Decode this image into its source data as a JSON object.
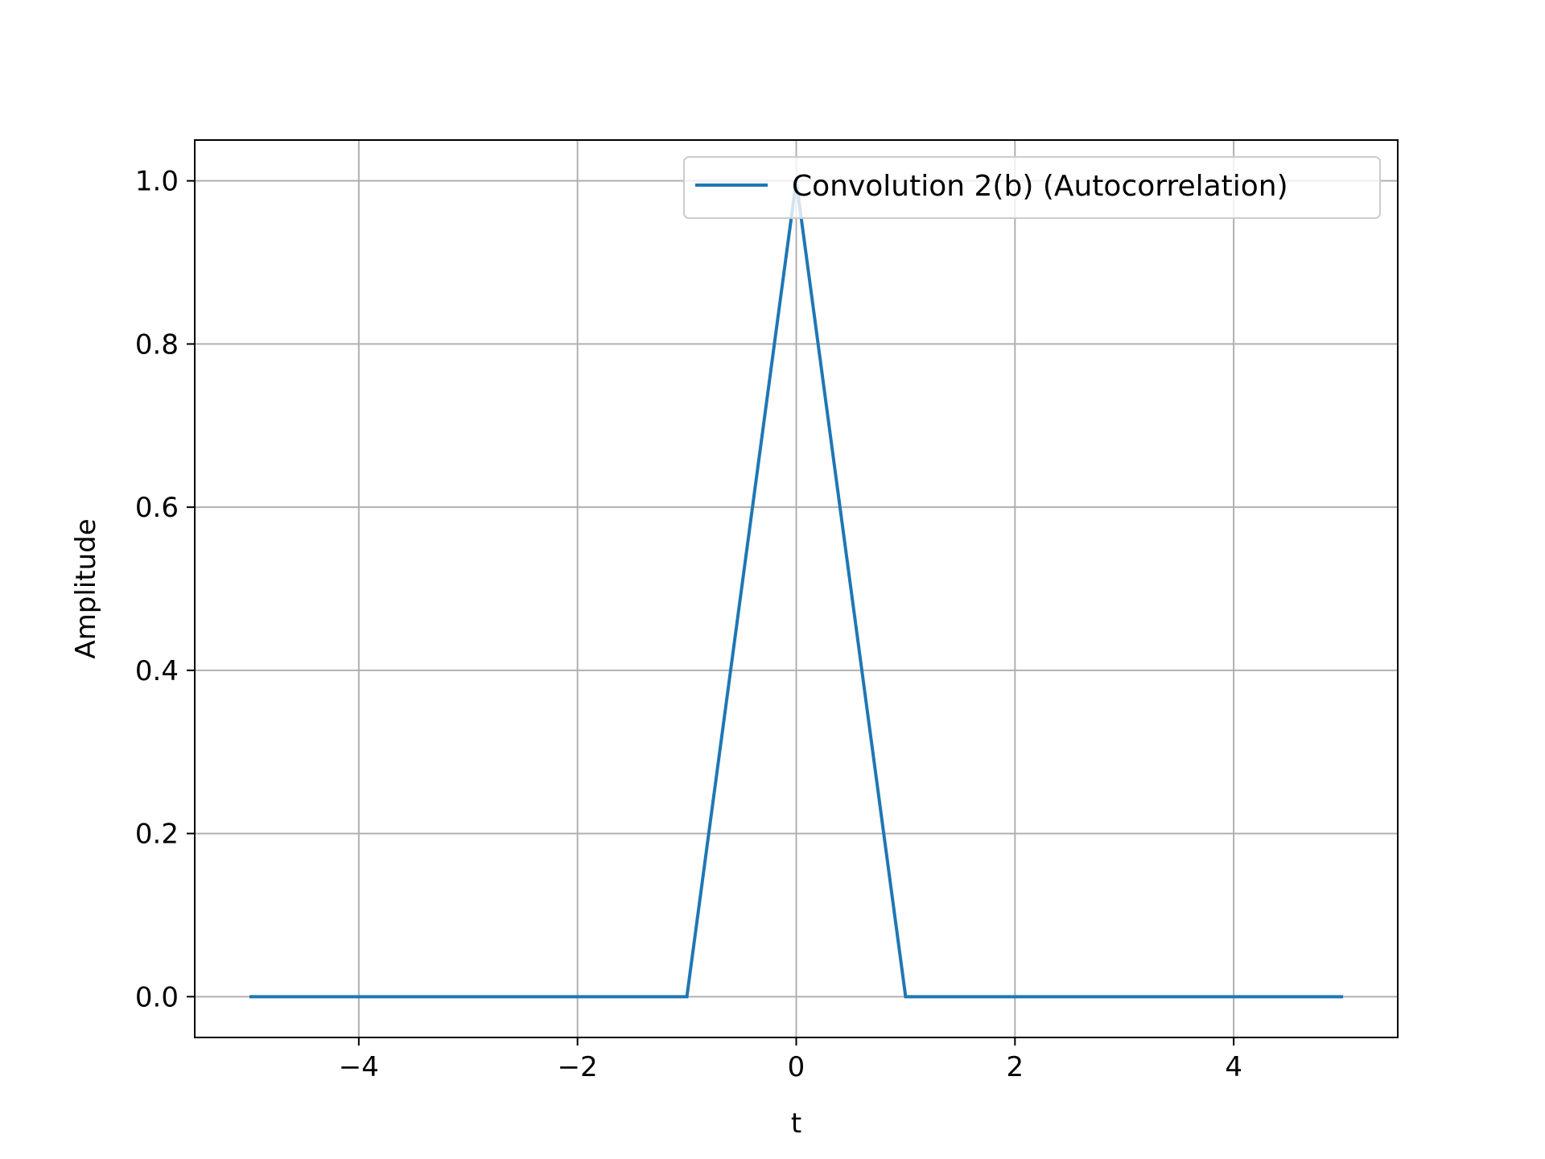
{
  "chart_data": {
    "type": "line",
    "title": "",
    "xlabel": "t",
    "ylabel": "Amplitude",
    "xlim": [
      -5.5,
      5.5
    ],
    "ylim": [
      -0.05,
      1.05
    ],
    "grid": true,
    "legend_position": "top-right",
    "x_ticks": [
      -4,
      -2,
      0,
      2,
      4
    ],
    "x_tick_labels": [
      "−4",
      "−2",
      "0",
      "2",
      "4"
    ],
    "y_ticks": [
      0.0,
      0.2,
      0.4,
      0.6,
      0.8,
      1.0
    ],
    "y_tick_labels": [
      "0.0",
      "0.2",
      "0.4",
      "0.6",
      "0.8",
      "1.0"
    ],
    "series": [
      {
        "name": "Convolution 2(b) (Autocorrelation)",
        "color": "#1f77b4",
        "x": [
          -5,
          -1,
          0,
          1,
          5
        ],
        "y": [
          0,
          0,
          1,
          0,
          0
        ]
      }
    ]
  }
}
